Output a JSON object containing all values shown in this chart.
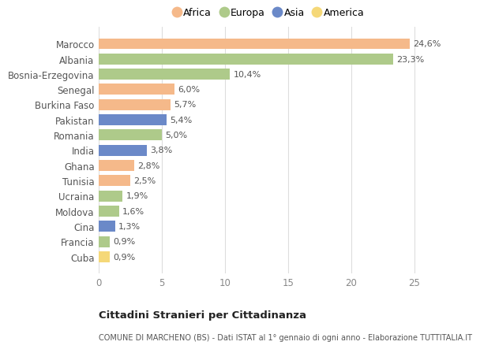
{
  "countries": [
    "Marocco",
    "Albania",
    "Bosnia-Erzegovina",
    "Senegal",
    "Burkina Faso",
    "Pakistan",
    "Romania",
    "India",
    "Ghana",
    "Tunisia",
    "Ucraina",
    "Moldova",
    "Cina",
    "Francia",
    "Cuba"
  ],
  "values": [
    24.6,
    23.3,
    10.4,
    6.0,
    5.7,
    5.4,
    5.0,
    3.8,
    2.8,
    2.5,
    1.9,
    1.6,
    1.3,
    0.9,
    0.9
  ],
  "labels": [
    "24,6%",
    "23,3%",
    "10,4%",
    "6,0%",
    "5,7%",
    "5,4%",
    "5,0%",
    "3,8%",
    "2,8%",
    "2,5%",
    "1,9%",
    "1,6%",
    "1,3%",
    "0,9%",
    "0,9%"
  ],
  "continents": [
    "Africa",
    "Europa",
    "Europa",
    "Africa",
    "Africa",
    "Asia",
    "Europa",
    "Asia",
    "Africa",
    "Africa",
    "Europa",
    "Europa",
    "Asia",
    "Europa",
    "America"
  ],
  "colors": {
    "Africa": "#F5B98A",
    "Europa": "#AECA8A",
    "Asia": "#6B89C8",
    "America": "#F5D878"
  },
  "legend_order": [
    "Africa",
    "Europa",
    "Asia",
    "America"
  ],
  "title": "Cittadini Stranieri per Cittadinanza",
  "subtitle": "COMUNE DI MARCHENO (BS) - Dati ISTAT al 1° gennaio di ogni anno - Elaborazione TUTTITALIA.IT",
  "xlim": [
    0,
    27
  ],
  "xticks": [
    0,
    5,
    10,
    15,
    20,
    25
  ],
  "background_color": "#ffffff",
  "grid_color": "#dddddd",
  "label_color": "#555555",
  "tick_color": "#888888"
}
